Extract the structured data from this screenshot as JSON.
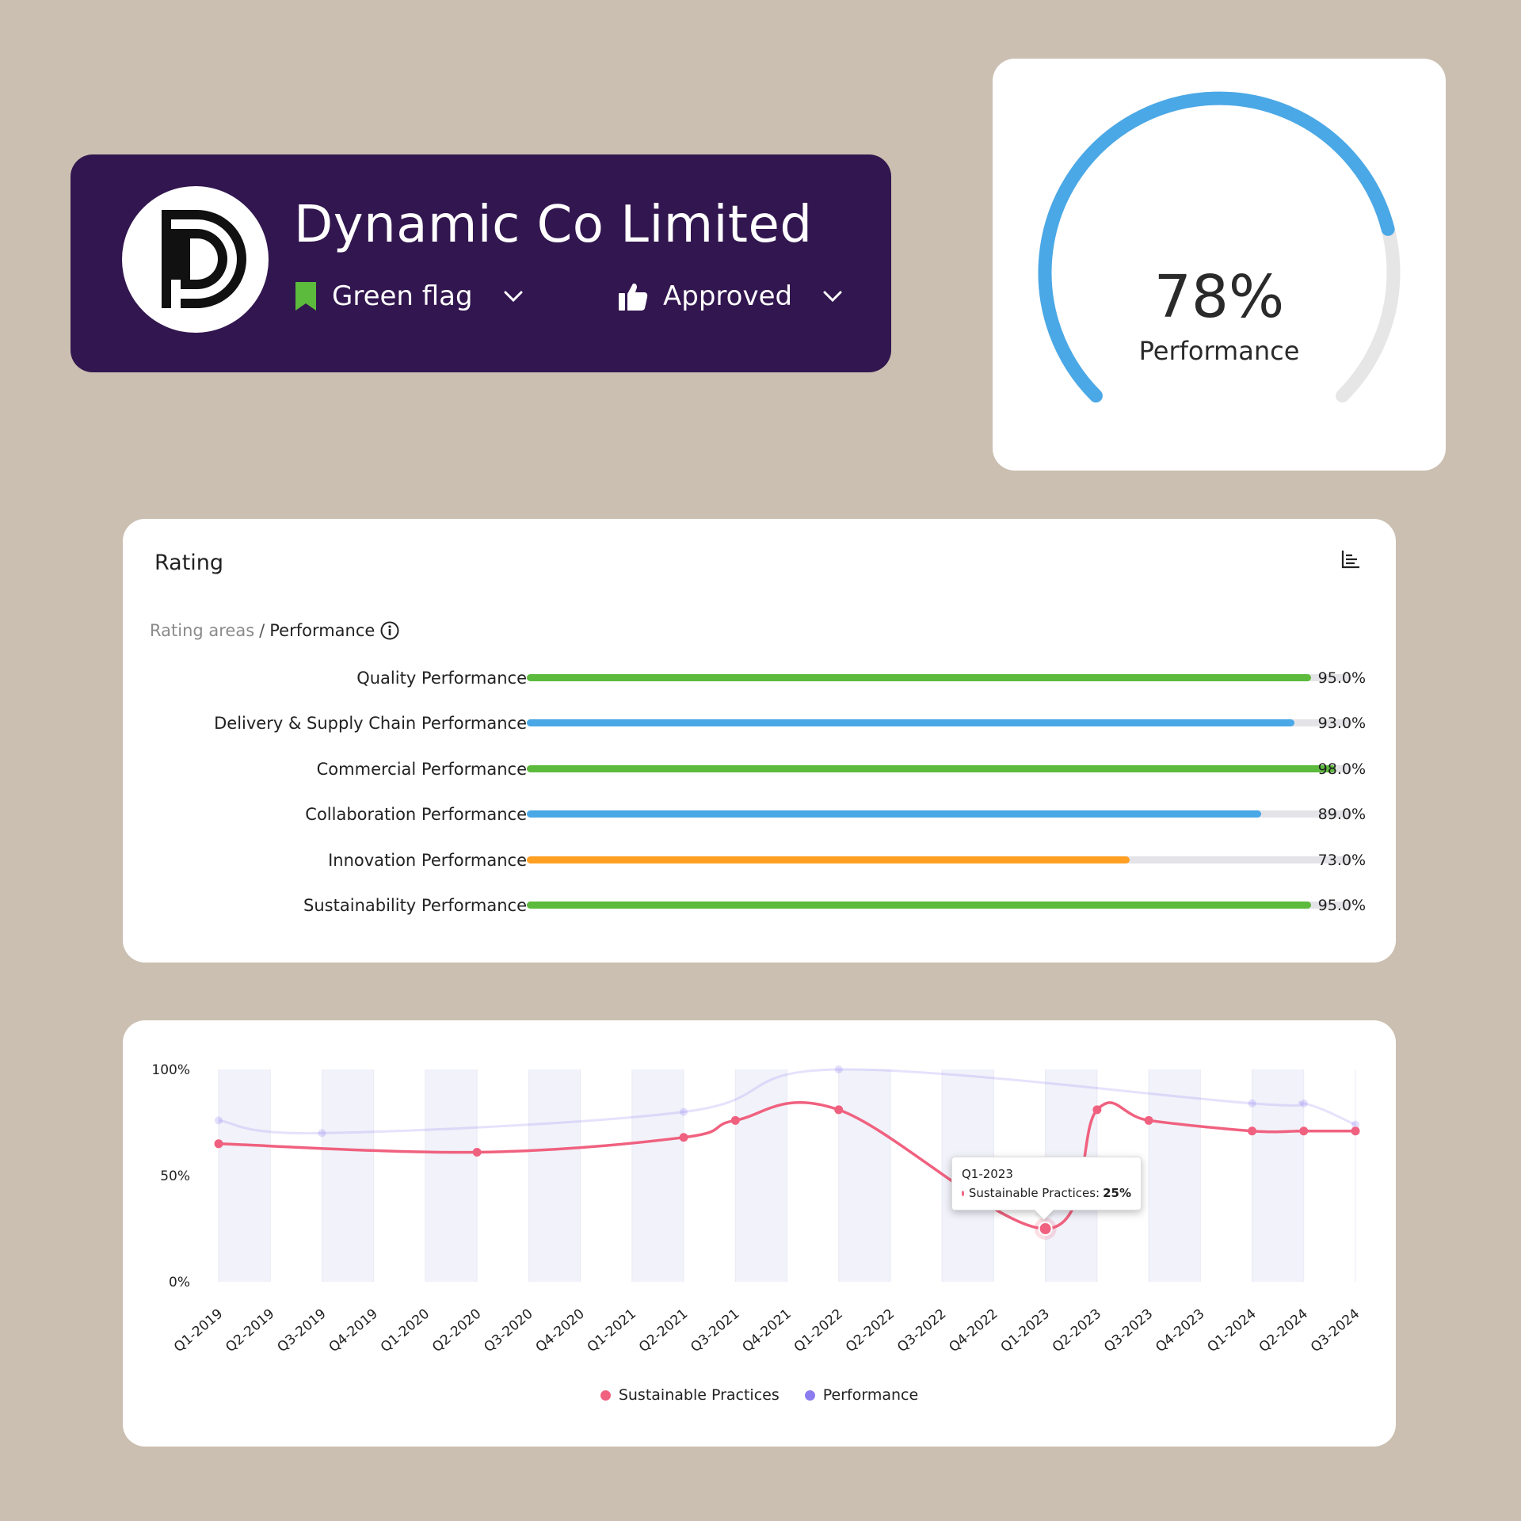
{
  "company": {
    "name": "Dynamic Co Limited",
    "flag_label": "Green flag",
    "approval_label": "Approved",
    "flag_color": "#5cba3c",
    "card_color": "#32164f"
  },
  "gauge": {
    "value": 78,
    "value_text": "78%",
    "label": "Performance",
    "color": "#4aa8e6",
    "track_color": "#e6e6e6"
  },
  "rating": {
    "title": "Rating",
    "breadcrumb_root": "Rating areas",
    "breadcrumb_separator": "/",
    "breadcrumb_current": "Performance",
    "items": [
      {
        "label": "Quality Performance",
        "value": 95.0,
        "value_text": "95.0%",
        "color": "#5cba3c"
      },
      {
        "label": "Delivery & Supply Chain Performance",
        "value": 93.0,
        "value_text": "93.0%",
        "color": "#4aa8e6"
      },
      {
        "label": "Commercial Performance",
        "value": 98.0,
        "value_text": "98.0%",
        "color": "#5cba3c"
      },
      {
        "label": "Collaboration Performance",
        "value": 89.0,
        "value_text": "89.0%",
        "color": "#4aa8e6"
      },
      {
        "label": "Innovation Performance",
        "value": 73.0,
        "value_text": "73.0%",
        "color": "#ffa023"
      },
      {
        "label": "Sustainability Performance",
        "value": 95.0,
        "value_text": "95.0%",
        "color": "#5cba3c"
      }
    ]
  },
  "chart_data": {
    "type": "line",
    "categories": [
      "Q1-2019",
      "Q2-2019",
      "Q3-2019",
      "Q4-2019",
      "Q1-2020",
      "Q2-2020",
      "Q3-2020",
      "Q4-2020",
      "Q1-2021",
      "Q2-2021",
      "Q3-2021",
      "Q4-2021",
      "Q1-2022",
      "Q2-2022",
      "Q3-2022",
      "Q4-2022",
      "Q1-2023",
      "Q2-2023",
      "Q3-2023",
      "Q4-2023",
      "Q1-2024",
      "Q2-2024",
      "Q3-2024"
    ],
    "y_ticks": [
      "100%",
      "50%",
      "0%"
    ],
    "ylim": [
      0,
      100
    ],
    "grid": false,
    "legend_position": "bottom",
    "series": [
      {
        "name": "Sustainable Practices",
        "color": "#f0617f",
        "values": [
          65,
          null,
          null,
          null,
          null,
          61,
          null,
          null,
          null,
          68,
          76,
          null,
          81,
          null,
          null,
          null,
          25,
          81,
          76,
          null,
          71,
          71,
          71
        ]
      },
      {
        "name": "Performance",
        "color": "#8b7cf0",
        "values": [
          76,
          null,
          70,
          null,
          null,
          null,
          null,
          null,
          null,
          80,
          null,
          null,
          100,
          null,
          null,
          null,
          null,
          null,
          null,
          null,
          84,
          84,
          74
        ]
      }
    ],
    "tooltip": {
      "category": "Q1-2023",
      "series_label": "Sustainable Practices:",
      "value_text": "25%"
    }
  }
}
